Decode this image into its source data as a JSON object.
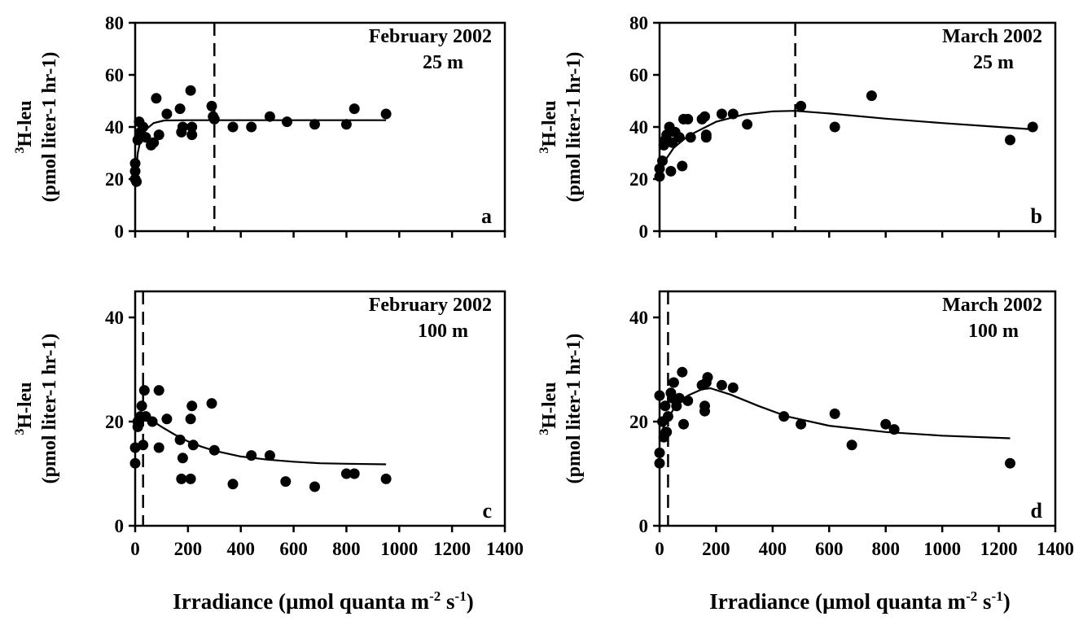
{
  "chart_data": [
    {
      "id": "a",
      "type": "scatter",
      "title": "February 2002",
      "subtitle": "25 m",
      "panel_letter": "a",
      "ylabel": "3H-leu (pmol liter-1 hr-1)",
      "ylabel_sup": "3",
      "ylabel_line1": "H-leu",
      "ylabel_line2": "(pmol liter-1 hr-1)",
      "xlim": [
        0,
        1400
      ],
      "ylim": [
        0,
        80
      ],
      "yticks": [
        0,
        20,
        40,
        60,
        80
      ],
      "xticks": [
        0,
        200,
        400,
        600,
        800,
        1000,
        1200,
        1400
      ],
      "show_xtick_labels": false,
      "vline_x": 300,
      "points": [
        [
          0,
          20
        ],
        [
          0,
          23
        ],
        [
          0,
          26
        ],
        [
          5,
          19
        ],
        [
          10,
          35
        ],
        [
          15,
          42
        ],
        [
          20,
          38
        ],
        [
          30,
          40
        ],
        [
          40,
          36
        ],
        [
          60,
          33
        ],
        [
          70,
          34
        ],
        [
          80,
          51
        ],
        [
          90,
          37
        ],
        [
          120,
          45
        ],
        [
          170,
          47
        ],
        [
          175,
          38
        ],
        [
          180,
          40
        ],
        [
          210,
          54
        ],
        [
          215,
          40
        ],
        [
          215,
          37
        ],
        [
          290,
          48
        ],
        [
          295,
          44
        ],
        [
          300,
          43
        ],
        [
          370,
          40
        ],
        [
          440,
          40
        ],
        [
          510,
          44
        ],
        [
          575,
          42
        ],
        [
          680,
          41
        ],
        [
          800,
          41
        ],
        [
          830,
          47
        ],
        [
          950,
          45
        ]
      ],
      "fit": [
        [
          0,
          20
        ],
        [
          10,
          30
        ],
        [
          20,
          35
        ],
        [
          40,
          39
        ],
        [
          70,
          41.5
        ],
        [
          110,
          42.5
        ],
        [
          200,
          42.6
        ],
        [
          400,
          42.6
        ],
        [
          700,
          42.6
        ],
        [
          950,
          42.6
        ]
      ]
    },
    {
      "id": "b",
      "type": "scatter",
      "title": "March 2002",
      "subtitle": "25 m",
      "panel_letter": "b",
      "ylabel": "3H-leu (pmol liter-1 hr-1)",
      "ylabel_sup": "3",
      "ylabel_line1": "H-leu",
      "ylabel_line2": "(pmol liter-1 hr-1)",
      "xlim": [
        0,
        1400
      ],
      "ylim": [
        0,
        80
      ],
      "yticks": [
        0,
        20,
        40,
        60,
        80
      ],
      "xticks": [
        0,
        200,
        400,
        600,
        800,
        1000,
        1200,
        1400
      ],
      "show_xtick_labels": false,
      "vline_x": 480,
      "points": [
        [
          0,
          21
        ],
        [
          0,
          24
        ],
        [
          10,
          27
        ],
        [
          15,
          33
        ],
        [
          20,
          35
        ],
        [
          25,
          37
        ],
        [
          35,
          40
        ],
        [
          40,
          23
        ],
        [
          45,
          34
        ],
        [
          55,
          38
        ],
        [
          70,
          36
        ],
        [
          80,
          25
        ],
        [
          85,
          43
        ],
        [
          100,
          43
        ],
        [
          110,
          36
        ],
        [
          150,
          43
        ],
        [
          160,
          44
        ],
        [
          165,
          36
        ],
        [
          165,
          37
        ],
        [
          220,
          45
        ],
        [
          260,
          45
        ],
        [
          310,
          41
        ],
        [
          500,
          48
        ],
        [
          620,
          40
        ],
        [
          750,
          52
        ],
        [
          1240,
          35
        ],
        [
          1320,
          40
        ]
      ],
      "fit": [
        [
          0,
          22
        ],
        [
          25,
          28
        ],
        [
          50,
          32
        ],
        [
          100,
          36.5
        ],
        [
          200,
          42
        ],
        [
          300,
          44.8
        ],
        [
          400,
          46
        ],
        [
          480,
          46.2
        ],
        [
          600,
          45.2
        ],
        [
          800,
          43.2
        ],
        [
          1000,
          41.5
        ],
        [
          1200,
          40
        ],
        [
          1330,
          39
        ]
      ]
    },
    {
      "id": "c",
      "type": "scatter",
      "title": "February 2002",
      "subtitle": "100 m",
      "panel_letter": "c",
      "ylabel": "3H-leu (pmol liter-1 hr-1)",
      "ylabel_sup": "3",
      "ylabel_line1": "H-leu",
      "ylabel_line2": "(pmol liter-1 hr-1)",
      "xlim": [
        0,
        1400
      ],
      "ylim": [
        0,
        45
      ],
      "yticks": [
        0,
        20,
        40
      ],
      "xticks": [
        0,
        200,
        400,
        600,
        800,
        1000,
        1200,
        1400
      ],
      "show_xtick_labels": true,
      "vline_x": 30,
      "points": [
        [
          0,
          12
        ],
        [
          0,
          15
        ],
        [
          10,
          19
        ],
        [
          10,
          20
        ],
        [
          20,
          21
        ],
        [
          25,
          23
        ],
        [
          30,
          15.5
        ],
        [
          35,
          26
        ],
        [
          40,
          21
        ],
        [
          65,
          20
        ],
        [
          90,
          26
        ],
        [
          90,
          15
        ],
        [
          120,
          20.5
        ],
        [
          170,
          16.5
        ],
        [
          175,
          9
        ],
        [
          180,
          13
        ],
        [
          210,
          9
        ],
        [
          210,
          20.5
        ],
        [
          215,
          23
        ],
        [
          220,
          15.5
        ],
        [
          290,
          23.5
        ],
        [
          300,
          14.5
        ],
        [
          370,
          8
        ],
        [
          440,
          13.5
        ],
        [
          510,
          13.5
        ],
        [
          570,
          8.5
        ],
        [
          680,
          7.5
        ],
        [
          800,
          10
        ],
        [
          830,
          10
        ],
        [
          950,
          9
        ]
      ],
      "fit": [
        [
          0,
          21
        ],
        [
          30,
          21
        ],
        [
          60,
          20.3
        ],
        [
          100,
          19
        ],
        [
          150,
          17.5
        ],
        [
          200,
          16.2
        ],
        [
          250,
          15.2
        ],
        [
          300,
          14.4
        ],
        [
          400,
          13.3
        ],
        [
          500,
          12.7
        ],
        [
          600,
          12.3
        ],
        [
          700,
          12
        ],
        [
          800,
          11.9
        ],
        [
          950,
          11.8
        ]
      ]
    },
    {
      "id": "d",
      "type": "scatter",
      "title": "March 2002",
      "subtitle": "100 m",
      "panel_letter": "d",
      "ylabel": "3H-leu (pmol liter-1 hr-1)",
      "ylabel_sup": "3",
      "ylabel_line1": "H-leu",
      "ylabel_line2": "(pmol liter-1 hr-1)",
      "xlim": [
        0,
        1400
      ],
      "ylim": [
        0,
        45
      ],
      "yticks": [
        0,
        20,
        40
      ],
      "xticks": [
        0,
        200,
        400,
        600,
        800,
        1000,
        1200,
        1400
      ],
      "show_xtick_labels": true,
      "vline_x": 30,
      "points": [
        [
          0,
          12
        ],
        [
          0,
          14
        ],
        [
          0,
          25
        ],
        [
          10,
          20
        ],
        [
          15,
          17
        ],
        [
          20,
          23
        ],
        [
          25,
          18
        ],
        [
          30,
          21
        ],
        [
          40,
          25.5
        ],
        [
          45,
          24.5
        ],
        [
          50,
          27.5
        ],
        [
          60,
          23
        ],
        [
          70,
          24.5
        ],
        [
          80,
          29.5
        ],
        [
          85,
          19.5
        ],
        [
          100,
          24
        ],
        [
          150,
          27
        ],
        [
          160,
          22
        ],
        [
          160,
          23
        ],
        [
          165,
          27.5
        ],
        [
          170,
          28.5
        ],
        [
          220,
          27
        ],
        [
          260,
          26.5
        ],
        [
          440,
          21
        ],
        [
          500,
          19.5
        ],
        [
          620,
          21.5
        ],
        [
          680,
          15.5
        ],
        [
          800,
          19.5
        ],
        [
          830,
          18.5
        ],
        [
          1240,
          12
        ]
      ],
      "fit": [
        [
          0,
          17.5
        ],
        [
          25,
          20
        ],
        [
          50,
          22.5
        ],
        [
          100,
          25
        ],
        [
          150,
          26.2
        ],
        [
          180,
          26.4
        ],
        [
          250,
          25.2
        ],
        [
          350,
          23
        ],
        [
          450,
          21
        ],
        [
          600,
          19.2
        ],
        [
          800,
          18
        ],
        [
          1000,
          17.3
        ],
        [
          1240,
          16.8
        ]
      ]
    }
  ],
  "xlabel": "Irradiance (µmol quanta m-2 s-1)",
  "xlabel_main": "Irradiance (µmol quanta m",
  "xlabel_sup1": "-2",
  "xlabel_mid": " s",
  "xlabel_sup2": "-1",
  "xlabel_end": ")"
}
